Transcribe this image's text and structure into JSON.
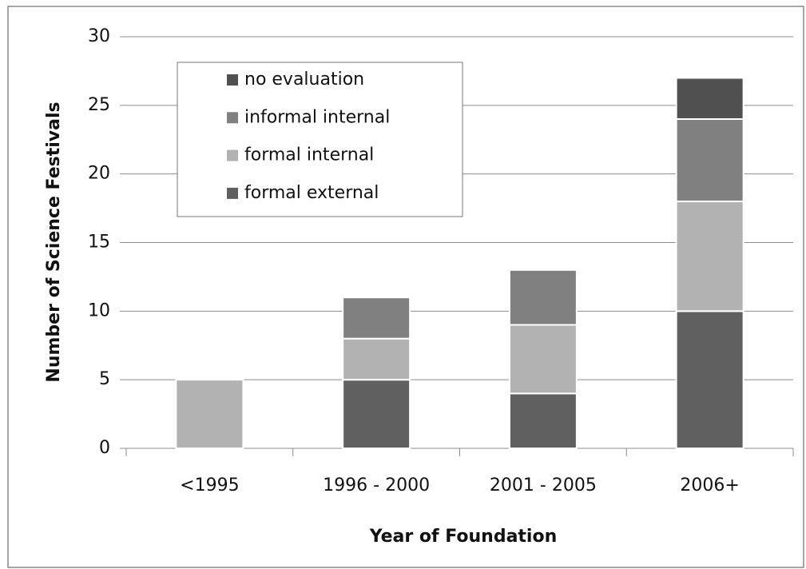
{
  "chart_data": {
    "type": "bar",
    "stacked": true,
    "x_label": "Year of Foundation",
    "y_label": "Number of Science Festivals",
    "categories": [
      "<1995",
      "1996 - 2000",
      "2001 - 2005",
      "2006+"
    ],
    "series": [
      {
        "name": "formal external",
        "color": "#606060",
        "values": [
          0,
          5,
          4,
          10
        ]
      },
      {
        "name": "formal internal",
        "color": "#b2b2b2",
        "values": [
          5,
          3,
          5,
          8
        ]
      },
      {
        "name": "informal internal",
        "color": "#808080",
        "values": [
          0,
          3,
          4,
          6
        ]
      },
      {
        "name": "no evaluation",
        "color": "#505050",
        "values": [
          0,
          0,
          0,
          3
        ]
      }
    ],
    "ylim": [
      0,
      30
    ],
    "yticks": [
      0,
      5,
      10,
      15,
      20,
      25,
      30
    ],
    "grid": true,
    "legend": "top-left"
  }
}
